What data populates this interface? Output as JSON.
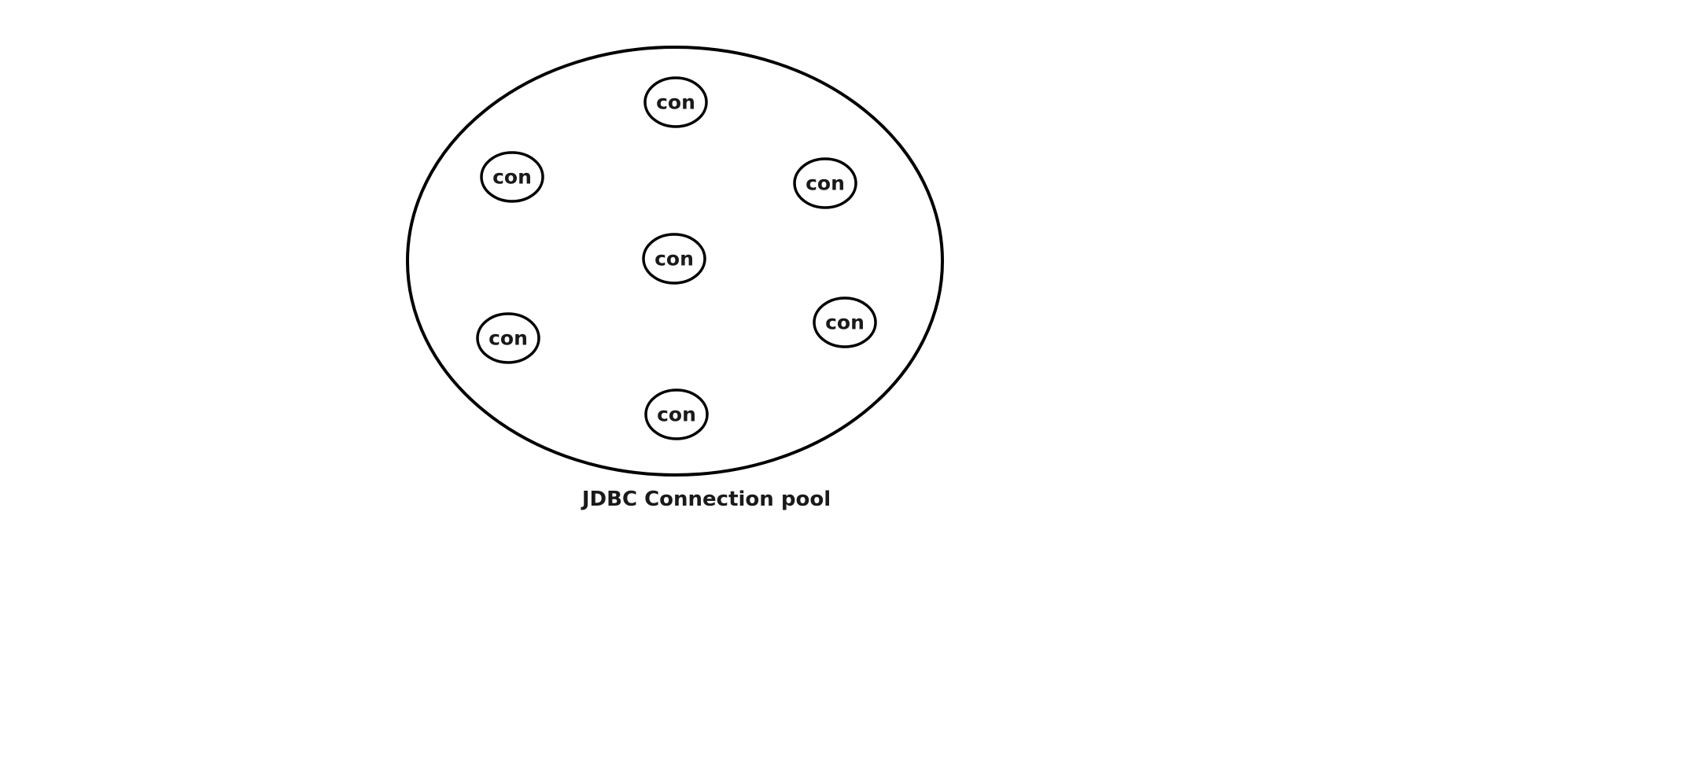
{
  "diagram": {
    "pool_label": "JDBC Connection pool",
    "connections": [
      {
        "label": "con"
      },
      {
        "label": "con"
      },
      {
        "label": "con"
      },
      {
        "label": "con"
      },
      {
        "label": "con"
      },
      {
        "label": "con"
      },
      {
        "label": "con"
      }
    ],
    "colors": {
      "stroke": "#000000",
      "text": "#1a1a1a",
      "background": "#ffffff"
    }
  }
}
